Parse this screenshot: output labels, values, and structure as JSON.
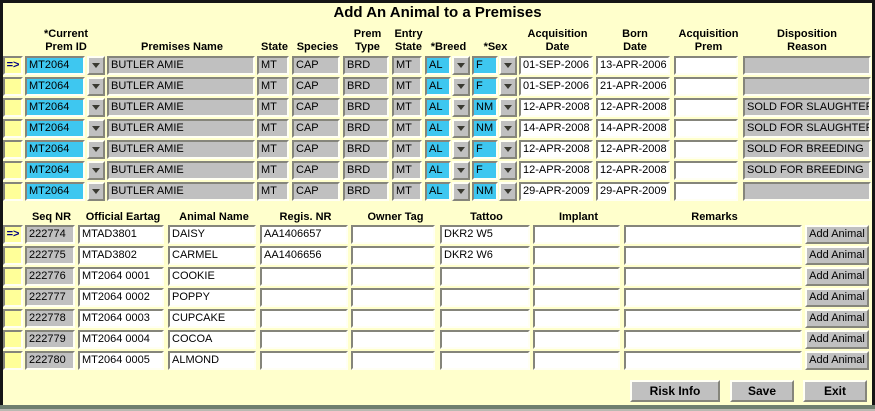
{
  "title": "Add An Animal to a Premises",
  "record_indicator": "=>",
  "colors": {
    "background": "#FFFFCC",
    "required_field_cyan": "#3EC7F0",
    "readonly_field_gray": "#C0C0C0",
    "indicator_yellow": "#FFFF99",
    "record_arrow_navy": "#000080",
    "bottom_bar_green_gray": "#6F7F6F"
  },
  "top_table": {
    "headers": [
      {
        "line1": "*Current",
        "line2": "Prem ID"
      },
      {
        "line1": "",
        "line2": "Premises Name"
      },
      {
        "line1": "",
        "line2": "State"
      },
      {
        "line1": "",
        "line2": "Species"
      },
      {
        "line1": "Prem",
        "line2": "Type"
      },
      {
        "line1": "Entry",
        "line2": "State"
      },
      {
        "line1": "",
        "line2": "*Breed"
      },
      {
        "line1": "",
        "line2": "*Sex"
      },
      {
        "line1": "Acquisition",
        "line2": "Date"
      },
      {
        "line1": "Born",
        "line2": "Date"
      },
      {
        "line1": "Acquisition",
        "line2": "Prem"
      },
      {
        "line1": "Disposition",
        "line2": "Reason"
      }
    ],
    "rows": [
      {
        "indicator": "=>",
        "prem_id": "MT2064",
        "premises_name": "BUTLER AMIE",
        "state": "MT",
        "species": "CAP",
        "prem_type": "BRD",
        "entry_state": "MT",
        "breed": "AL",
        "sex": "F",
        "acquisition_date": "01-SEP-2006",
        "born_date": "13-APR-2006",
        "acquisition_prem": "",
        "disposition_reason": ""
      },
      {
        "indicator": "",
        "prem_id": "MT2064",
        "premises_name": "BUTLER AMIE",
        "state": "MT",
        "species": "CAP",
        "prem_type": "BRD",
        "entry_state": "MT",
        "breed": "AL",
        "sex": "F",
        "acquisition_date": "01-SEP-2006",
        "born_date": "21-APR-2006",
        "acquisition_prem": "",
        "disposition_reason": ""
      },
      {
        "indicator": "",
        "prem_id": "MT2064",
        "premises_name": "BUTLER AMIE",
        "state": "MT",
        "species": "CAP",
        "prem_type": "BRD",
        "entry_state": "MT",
        "breed": "AL",
        "sex": "NM",
        "acquisition_date": "12-APR-2008",
        "born_date": "12-APR-2008",
        "acquisition_prem": "",
        "disposition_reason": "SOLD FOR SLAUGHTER"
      },
      {
        "indicator": "",
        "prem_id": "MT2064",
        "premises_name": "BUTLER AMIE",
        "state": "MT",
        "species": "CAP",
        "prem_type": "BRD",
        "entry_state": "MT",
        "breed": "AL",
        "sex": "NM",
        "acquisition_date": "14-APR-2008",
        "born_date": "14-APR-2008",
        "acquisition_prem": "",
        "disposition_reason": "SOLD FOR SLAUGHTER"
      },
      {
        "indicator": "",
        "prem_id": "MT2064",
        "premises_name": "BUTLER AMIE",
        "state": "MT",
        "species": "CAP",
        "prem_type": "BRD",
        "entry_state": "MT",
        "breed": "AL",
        "sex": "F",
        "acquisition_date": "12-APR-2008",
        "born_date": "12-APR-2008",
        "acquisition_prem": "",
        "disposition_reason": "SOLD FOR BREEDING"
      },
      {
        "indicator": "",
        "prem_id": "MT2064",
        "premises_name": "BUTLER AMIE",
        "state": "MT",
        "species": "CAP",
        "prem_type": "BRD",
        "entry_state": "MT",
        "breed": "AL",
        "sex": "F",
        "acquisition_date": "12-APR-2008",
        "born_date": "12-APR-2008",
        "acquisition_prem": "",
        "disposition_reason": "SOLD FOR BREEDING"
      },
      {
        "indicator": "",
        "prem_id": "MT2064",
        "premises_name": "BUTLER AMIE",
        "state": "MT",
        "species": "CAP",
        "prem_type": "BRD",
        "entry_state": "MT",
        "breed": "AL",
        "sex": "NM",
        "acquisition_date": "29-APR-2009",
        "born_date": "29-APR-2009",
        "acquisition_prem": "",
        "disposition_reason": ""
      }
    ]
  },
  "bottom_table": {
    "headers": [
      "Seq NR",
      "Official Eartag",
      "Animal Name",
      "Regis. NR",
      "Owner Tag",
      "Tattoo",
      "Implant",
      "Remarks"
    ],
    "add_button_label": "Add Animal",
    "rows": [
      {
        "indicator": "=>",
        "seq_nr": "222774",
        "official_eartag": "MTAD3801",
        "animal_name": "DAISY",
        "regis_nr": "AA1406657",
        "owner_tag": "",
        "tattoo": "DKR2 W5",
        "implant": "",
        "remarks": ""
      },
      {
        "indicator": "",
        "seq_nr": "222775",
        "official_eartag": "MTAD3802",
        "animal_name": "CARMEL",
        "regis_nr": "AA1406656",
        "owner_tag": "",
        "tattoo": "DKR2 W6",
        "implant": "",
        "remarks": ""
      },
      {
        "indicator": "",
        "seq_nr": "222776",
        "official_eartag": "MT2064 0001",
        "animal_name": "COOKIE",
        "regis_nr": "",
        "owner_tag": "",
        "tattoo": "",
        "implant": "",
        "remarks": ""
      },
      {
        "indicator": "",
        "seq_nr": "222777",
        "official_eartag": "MT2064 0002",
        "animal_name": "POPPY",
        "regis_nr": "",
        "owner_tag": "",
        "tattoo": "",
        "implant": "",
        "remarks": ""
      },
      {
        "indicator": "",
        "seq_nr": "222778",
        "official_eartag": "MT2064 0003",
        "animal_name": "CUPCAKE",
        "regis_nr": "",
        "owner_tag": "",
        "tattoo": "",
        "implant": "",
        "remarks": ""
      },
      {
        "indicator": "",
        "seq_nr": "222779",
        "official_eartag": "MT2064 0004",
        "animal_name": "COCOA",
        "regis_nr": "",
        "owner_tag": "",
        "tattoo": "",
        "implant": "",
        "remarks": ""
      },
      {
        "indicator": "",
        "seq_nr": "222780",
        "official_eartag": "MT2064 0005",
        "animal_name": "ALMOND",
        "regis_nr": "",
        "owner_tag": "",
        "tattoo": "",
        "implant": "",
        "remarks": ""
      }
    ]
  },
  "footer": {
    "risk_info_label": "Risk Info",
    "save_label": "Save",
    "exit_label": "Exit"
  }
}
